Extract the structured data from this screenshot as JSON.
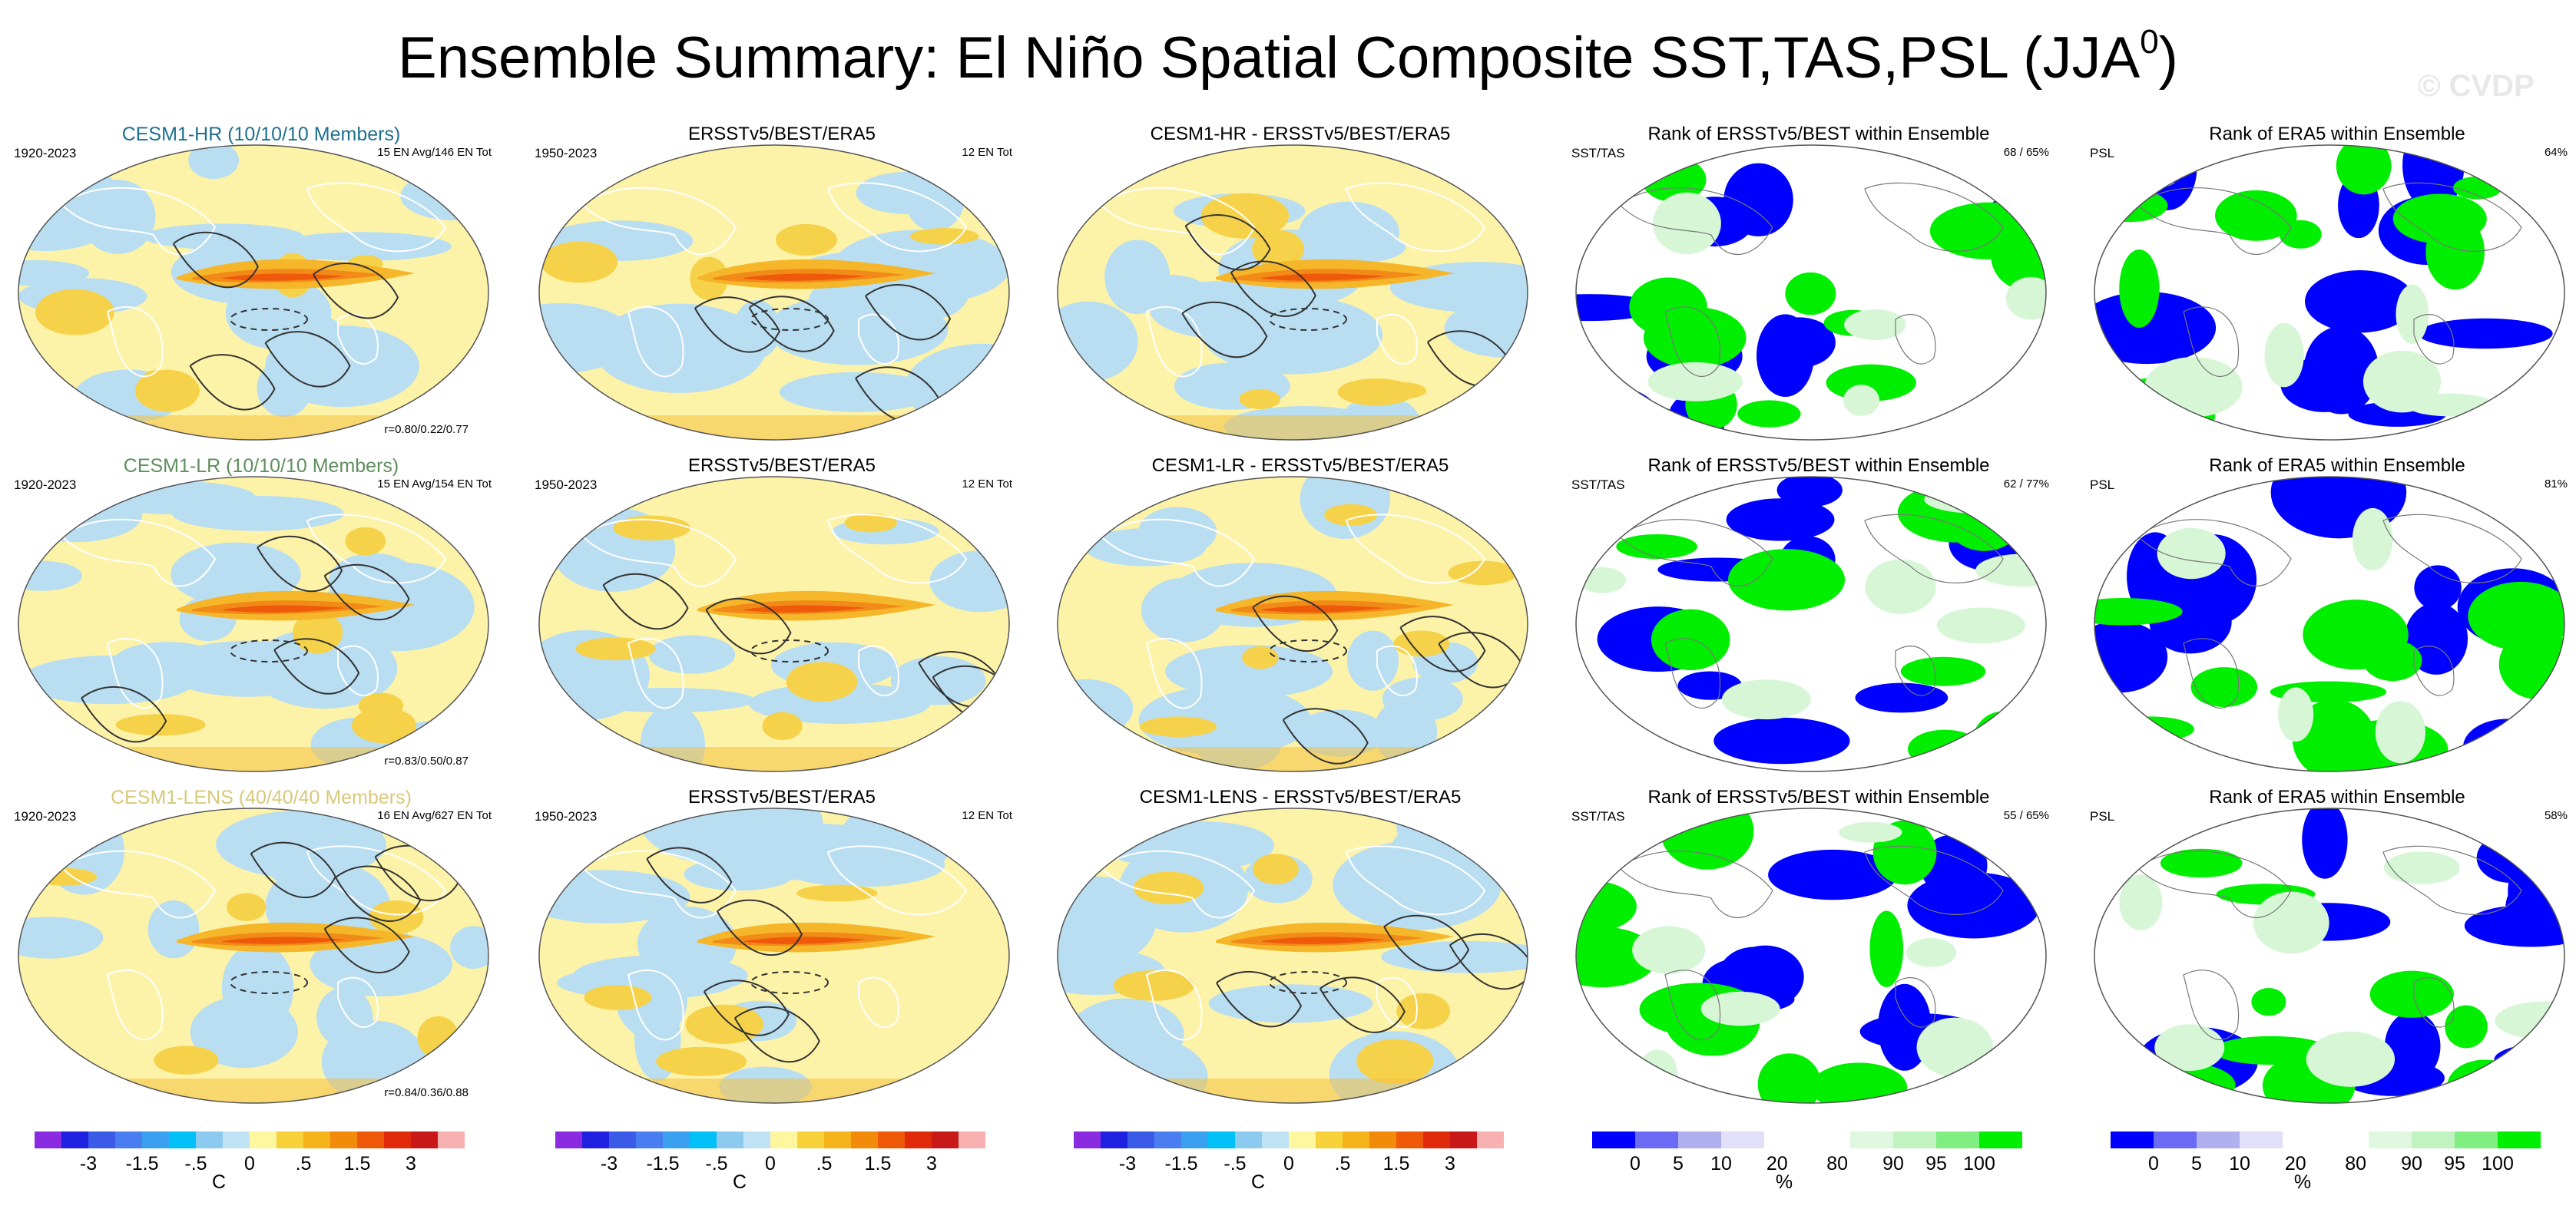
{
  "title": "Ensemble Summary: El Niño Spatial Composite SST,TAS,PSL (JJA",
  "title_sup": "0",
  "title_close": ")",
  "watermark": "© CVDP",
  "rows": [
    {
      "model_label": "CESM1-HR (10/10/10 Members)",
      "model_color": "#1f6f8f",
      "model_years": "1920-2023",
      "model_counts": "15 EN Avg/146 EN Tot",
      "model_corr": "r=0.80/0.22/0.77",
      "obs_title": "ERSSTv5/BEST/ERA5",
      "obs_years": "1950-2023",
      "obs_counts": "12 EN Tot",
      "diff_title": "CESM1-HR - ERSSTv5/BEST/ERA5",
      "rank1_title": "Rank of ERSSTv5/BEST within Ensemble",
      "rank1_var": "SST/TAS",
      "rank1_pct": "68 /  65%",
      "rank2_title": "Rank of ERA5 within Ensemble",
      "rank2_var": "PSL",
      "rank2_pct": "64%"
    },
    {
      "model_label": "CESM1-LR (10/10/10 Members)",
      "model_color": "#5f8f5f",
      "model_years": "1920-2023",
      "model_counts": "15 EN Avg/154 EN Tot",
      "model_corr": "r=0.83/0.50/0.87",
      "obs_title": "ERSSTv5/BEST/ERA5",
      "obs_years": "1950-2023",
      "obs_counts": "12 EN Tot",
      "diff_title": "CESM1-LR - ERSSTv5/BEST/ERA5",
      "rank1_title": "Rank of ERSSTv5/BEST within Ensemble",
      "rank1_var": "SST/TAS",
      "rank1_pct": "62 /  77%",
      "rank2_title": "Rank of ERA5 within Ensemble",
      "rank2_var": "PSL",
      "rank2_pct": "81%"
    },
    {
      "model_label": "CESM1-LENS (40/40/40 Members)",
      "model_color": "#d8c87a",
      "model_years": "1920-2023",
      "model_counts": "16 EN Avg/627 EN Tot",
      "model_corr": "r=0.84/0.36/0.88",
      "obs_title": "ERSSTv5/BEST/ERA5",
      "obs_years": "1950-2023",
      "obs_counts": "12 EN Tot",
      "diff_title": "CESM1-LENS - ERSSTv5/BEST/ERA5",
      "rank1_title": "Rank of ERSSTv5/BEST within Ensemble",
      "rank1_var": "SST/TAS",
      "rank1_pct": "55 /  65%",
      "rank2_title": "Rank of ERA5 within Ensemble",
      "rank2_var": "PSL",
      "rank2_pct": "58%"
    }
  ],
  "colorbars": {
    "anomaly": {
      "unit": "C",
      "labels": [
        "-3",
        "-1.5",
        "-.5",
        "0",
        ".5",
        "1.5",
        "3"
      ],
      "colors": [
        "#8a2be2",
        "#2020e0",
        "#3a5ae8",
        "#4a7ef0",
        "#3aa0f0",
        "#00c0f8",
        "#8ccaf0",
        "#bfe3f5",
        "#fff7a0",
        "#f7d23a",
        "#f4b41a",
        "#f28a0a",
        "#ee5a0a",
        "#e02a0a",
        "#c81818",
        "#f8b0b0"
      ]
    },
    "rank": {
      "unit": "%",
      "labels": [
        "0",
        "5",
        "10",
        "20",
        "80",
        "90",
        "95",
        "100"
      ],
      "colors": [
        "#0000ff",
        "#6a6af5",
        "#b0b0ee",
        "#e0e0f8",
        "#ffffff",
        "#ffffff",
        "#e0f8e0",
        "#c0f3c0",
        "#80ee80",
        "#00ee00"
      ]
    }
  },
  "icons": {
    "map": "globe-projection",
    "colorbar": "color-scale"
  }
}
